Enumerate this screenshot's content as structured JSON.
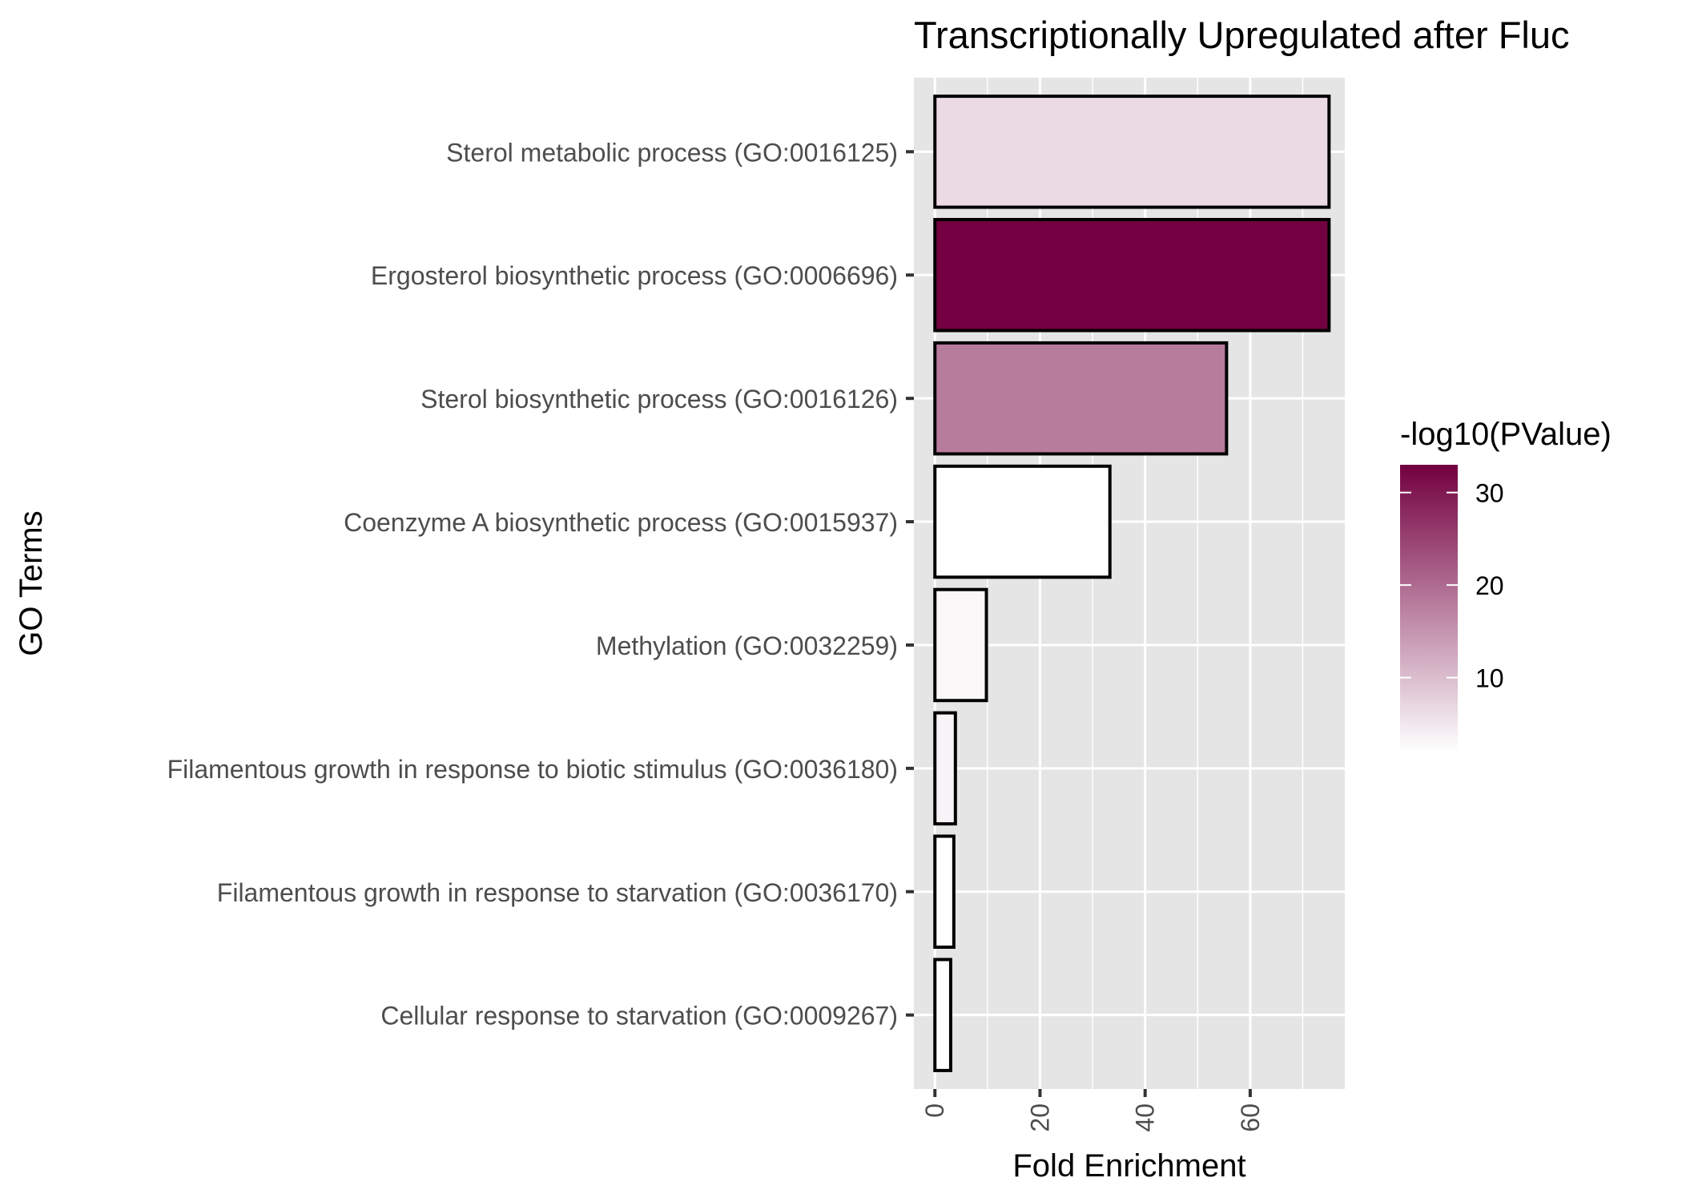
{
  "chart_data": {
    "type": "bar",
    "orientation": "horizontal",
    "title": "Transcriptionally Upregulated after Fluc",
    "xlabel": "Fold Enrichment",
    "ylabel": "GO Terms",
    "xlim": [
      -4,
      78
    ],
    "x_ticks": [
      0,
      20,
      40,
      60
    ],
    "x_tick_labels": [
      "0",
      "20",
      "40",
      "60"
    ],
    "grid": true,
    "categories": [
      "Sterol metabolic process (GO:0016125)",
      "Ergosterol biosynthetic process (GO:0006696)",
      "Sterol biosynthetic process (GO:0016126)",
      "Coenzyme A biosynthetic process (GO:0015937)",
      "Methylation (GO:0032259)",
      "Filamentous growth in response to biotic stimulus (GO:0036180)",
      "Filamentous growth in response to starvation (GO:0036170)",
      "Cellular response to starvation (GO:0009267)"
    ],
    "values": [
      75,
      75,
      55.5,
      33.3,
      9.8,
      3.9,
      3.6,
      3.0
    ],
    "color_values": [
      6.5,
      33,
      18,
      2,
      2.8,
      3.5,
      2,
      2
    ],
    "legend": {
      "title": "-log10(PValue)",
      "position": "right",
      "ticks": [
        10,
        20,
        30
      ],
      "tick_labels": [
        "10",
        "20",
        "30"
      ],
      "range": [
        2,
        33
      ],
      "low_color": "#ffffff",
      "high_color": "#730040"
    },
    "colors": {
      "panel_background": "#e5e5e5",
      "grid": "#ffffff",
      "bar_outline": "#000000"
    }
  }
}
